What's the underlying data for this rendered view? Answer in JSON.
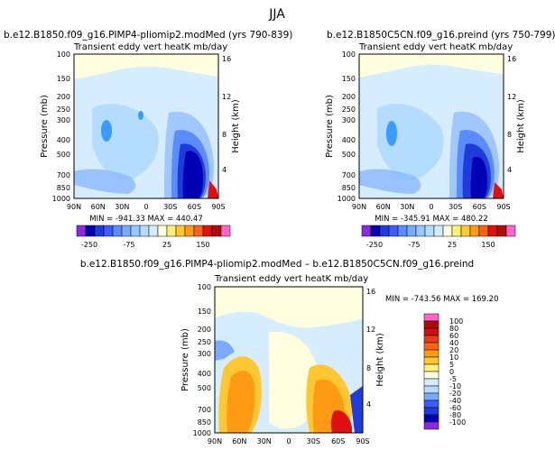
{
  "figure_title": "JJA",
  "chart_data": [
    {
      "type": "heatmap",
      "title": "b.e12.B1850.f09_g16.PIMP4-pliomip2.modMed (yrs 790-839)",
      "subtitle": "Transient eddy vert heatK mb/day",
      "ylabel": "Pressure (mb)",
      "ylabel_right": "Height (km)",
      "x_ticks": [
        "90N",
        "60N",
        "30N",
        "0",
        "30S",
        "60S",
        "90S"
      ],
      "y_ticks": [
        "100",
        "150",
        "200",
        "250",
        "300",
        "400",
        "500",
        "700",
        "850",
        "1000"
      ],
      "y_ticks_right": [
        "16",
        "12",
        "8",
        "4"
      ],
      "stats": "MIN = -941.33   MAX = 440.47",
      "colorbar_labels": [
        "-250",
        "-75",
        "25",
        "150"
      ],
      "features": [
        {
          "lat": -45,
          "p": 600,
          "value": -250
        },
        {
          "lat": -50,
          "p": 780,
          "value": -941
        },
        {
          "lat": 70,
          "p": 400,
          "value": -75
        },
        {
          "lat": 30,
          "p": 280,
          "value": -50
        },
        {
          "lat": -80,
          "p": 930,
          "value": 440
        }
      ]
    },
    {
      "type": "heatmap",
      "title": "b.e12.B1850C5CN.f09_g16.preind (yrs 750-799)",
      "subtitle": "Transient eddy vert heatK mb/day",
      "ylabel": "Pressure (mb)",
      "ylabel_right": "Height (km)",
      "x_ticks": [
        "90N",
        "60N",
        "30N",
        "0",
        "30S",
        "60S",
        "90S"
      ],
      "y_ticks": [
        "100",
        "150",
        "200",
        "250",
        "300",
        "400",
        "500",
        "700",
        "850",
        "1000"
      ],
      "y_ticks_right": [
        "16",
        "12",
        "8",
        "4"
      ],
      "stats": "MIN = -345.91   MAX = 480.22",
      "colorbar_labels": [
        "-250",
        "-75",
        "25",
        "150"
      ],
      "features": [
        {
          "lat": -45,
          "p": 600,
          "value": -250
        },
        {
          "lat": -50,
          "p": 780,
          "value": -345
        },
        {
          "lat": 70,
          "p": 400,
          "value": -75
        },
        {
          "lat": -80,
          "p": 930,
          "value": 480
        }
      ]
    },
    {
      "type": "heatmap",
      "title": "b.e12.B1850.f09_g16.PIMP4-pliomip2.modMed – b.e12.B1850C5CN.f09_g16.preind",
      "subtitle": "Transient eddy vert heatK mb/day",
      "ylabel": "Pressure (mb)",
      "ylabel_right": "Height (km)",
      "x_ticks": [
        "90N",
        "60N",
        "30N",
        "0",
        "30S",
        "60S",
        "90S"
      ],
      "y_ticks": [
        "100",
        "150",
        "200",
        "250",
        "300",
        "400",
        "500",
        "700",
        "850",
        "1000"
      ],
      "y_ticks_right": [
        "16",
        "12",
        "8",
        "4"
      ],
      "stats": "MIN = -743.56   MAX = 169.20",
      "colorbar_labels": [
        "100",
        "80",
        "60",
        "40",
        "20",
        "10",
        "5",
        "0",
        "-5",
        "-10",
        "-20",
        "-40",
        "-60",
        "-80",
        "-100"
      ],
      "features": [
        {
          "lat": 60,
          "p": 550,
          "value": 40
        },
        {
          "lat": -45,
          "p": 600,
          "value": 40
        },
        {
          "lat": -70,
          "p": 900,
          "value": 169
        },
        {
          "lat": -80,
          "p": 950,
          "value": -743
        },
        {
          "lat": 80,
          "p": 350,
          "value": -20
        }
      ]
    }
  ],
  "colors": {
    "bar_250": "#8a2be2",
    "bar_neg_dark": "#0000b4",
    "bar_neg_mid": "#1e3cdc",
    "bar_light": "#b4dcff",
    "bar_white": "#ffffe0",
    "bar_red": "#e01010",
    "bar_pink": "#ff66cc"
  }
}
